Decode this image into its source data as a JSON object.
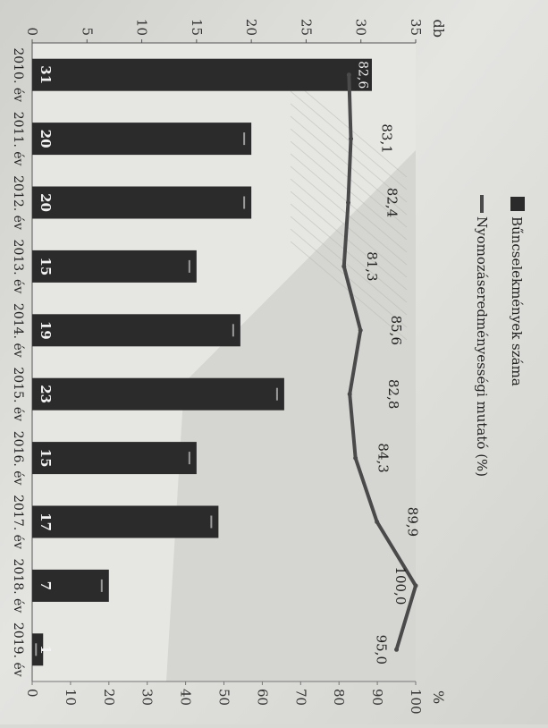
{
  "chart_data": {
    "type": "bar",
    "orientation": "rotated-90-clockwise",
    "categories": [
      "2010. év",
      "2011. év",
      "2012. év",
      "2013. év",
      "2014. év",
      "2015. év",
      "2016. év",
      "2017. év",
      "2018. év",
      "2019. év"
    ],
    "series": [
      {
        "name": "Bűncselekmények száma",
        "type": "bar",
        "axis": "left",
        "values": [
          31,
          20,
          20,
          15,
          19,
          23,
          15,
          17,
          7,
          1
        ],
        "color": "#2b2b2b"
      },
      {
        "name": "Nyomozáseredményességi mutató (%)",
        "type": "line",
        "axis": "right",
        "values": [
          82.6,
          83.1,
          82.4,
          81.3,
          85.6,
          82.8,
          84.3,
          89.9,
          100.0,
          95.0
        ],
        "labels": [
          "82,6",
          "83,1",
          "82,4",
          "81,3",
          "85,6",
          "82,8",
          "84,3",
          "89,9",
          "100,0",
          "95,0"
        ],
        "color": "#4a4a4a"
      }
    ],
    "y_left": {
      "label": "db",
      "ticks": [
        "0",
        "5",
        "10",
        "15",
        "20",
        "25",
        "30",
        "35"
      ],
      "range": [
        0,
        35
      ]
    },
    "y_right": {
      "label": "%",
      "ticks": [
        "0",
        "10",
        "20",
        "30",
        "40",
        "50",
        "60",
        "70",
        "80",
        "90",
        "100"
      ],
      "range": [
        0,
        100
      ]
    },
    "legend_position": "top",
    "grid": false
  }
}
